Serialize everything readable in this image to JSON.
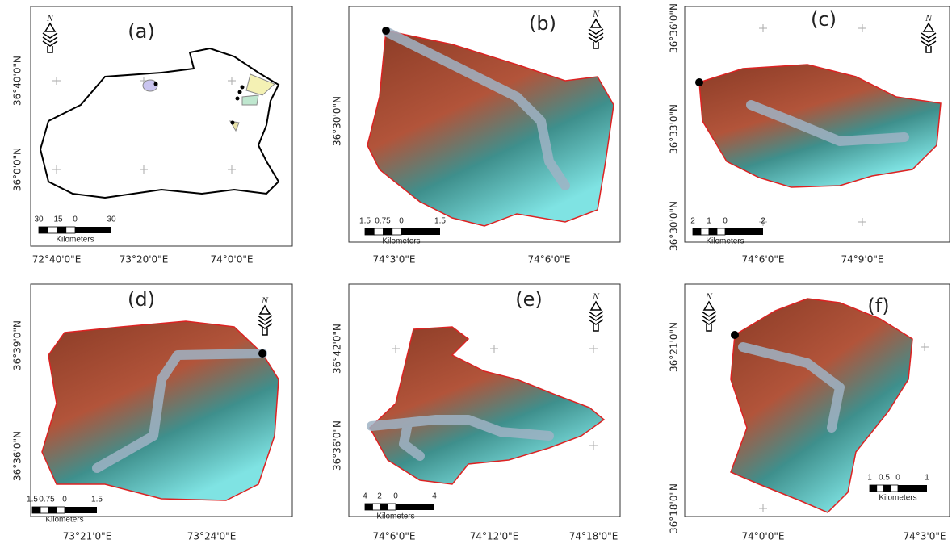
{
  "panels": [
    {
      "label": "(a)",
      "north": "N",
      "scale_labels": [
        "30",
        "15",
        "0",
        "30"
      ],
      "scale_unit": "Kilometers",
      "x_labels": [
        "72°40'0\"E",
        "73°20'0\"E",
        "74°0'0\"E"
      ],
      "y_labels": [
        "36°40'0\"N",
        "36°0'0\"N"
      ]
    },
    {
      "label": "(b)",
      "north": "N",
      "scale_labels": [
        "1.5",
        "0.75",
        "0",
        "1.5"
      ],
      "scale_unit": "Kilometers",
      "x_labels": [
        "74°3'0\"E",
        "74°6'0\"E"
      ],
      "y_labels": [
        "36°30'0\"N"
      ]
    },
    {
      "label": "(c)",
      "north": "N",
      "scale_labels": [
        "2",
        "1",
        "0",
        "2"
      ],
      "scale_unit": "Kilometers",
      "x_labels": [
        "74°6'0\"E",
        "74°9'0\"E"
      ],
      "y_labels": [
        "36°36'0\"N",
        "36°33'0\"N",
        "36°30'0\"N"
      ]
    },
    {
      "label": "(d)",
      "north": "N",
      "scale_labels": [
        "1.5",
        "0.75",
        "0",
        "1.5"
      ],
      "scale_unit": "Kilometers",
      "x_labels": [
        "73°21'0\"E",
        "73°24'0\"E"
      ],
      "y_labels": [
        "36°39'0\"N",
        "36°36'0\"N"
      ]
    },
    {
      "label": "(e)",
      "north": "N",
      "scale_labels": [
        "4",
        "2",
        "0",
        "4"
      ],
      "scale_unit": "Kilometers",
      "x_labels": [
        "74°6'0\"E",
        "74°12'0\"E",
        "74°18'0\"E"
      ],
      "y_labels": [
        "36°42'0\"N",
        "36°36'0\"N"
      ]
    },
    {
      "label": "(f)",
      "north": "N",
      "scale_labels": [
        "1",
        "0.5",
        "0",
        "1"
      ],
      "scale_unit": "Kilometers",
      "x_labels": [
        "74°0'0\"E",
        "74°3'0\"E"
      ],
      "y_labels": [
        "36°21'0\"N",
        "36°18'0\"N"
      ]
    }
  ]
}
